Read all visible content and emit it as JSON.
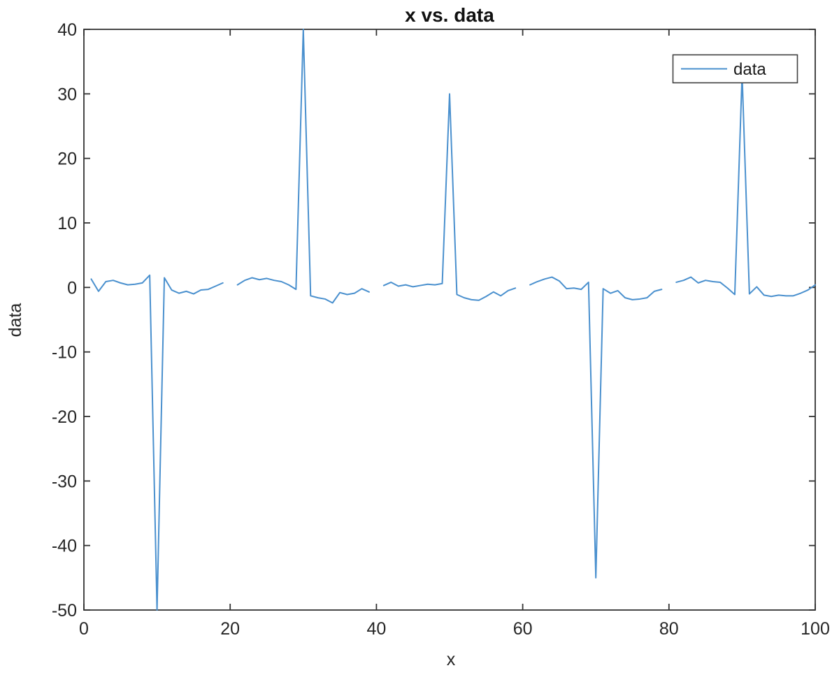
{
  "figure": {
    "title": "x vs. data",
    "xlabel": "x",
    "ylabel": "data",
    "background_color": "#ffffff"
  },
  "legend": {
    "entries": [
      {
        "label": "data",
        "line_color": "#4a90ce"
      }
    ],
    "position": "top-right",
    "border_color": "#404040"
  },
  "colors": {
    "line": "#4a90ce",
    "axis": "#333333",
    "tick_text": "#262626",
    "title_text": "#111111"
  },
  "chart_data": {
    "type": "line",
    "title": "x vs. data",
    "xlabel": "x",
    "ylabel": "data",
    "xlim": [
      0,
      100
    ],
    "ylim": [
      -50,
      40
    ],
    "xticks": [
      0,
      20,
      40,
      60,
      80,
      100
    ],
    "yticks": [
      -50,
      -40,
      -30,
      -20,
      -10,
      0,
      10,
      20,
      30,
      40
    ],
    "grid": false,
    "legend_position": "top-right",
    "series": [
      {
        "name": "data",
        "color": "#4a90ce",
        "x": [
          1,
          2,
          3,
          4,
          5,
          6,
          7,
          8,
          9,
          10,
          11,
          12,
          13,
          14,
          15,
          16,
          17,
          18,
          19,
          20,
          21,
          22,
          23,
          24,
          25,
          26,
          27,
          28,
          29,
          30,
          31,
          32,
          33,
          34,
          35,
          36,
          37,
          38,
          39,
          40,
          41,
          42,
          43,
          44,
          45,
          46,
          47,
          48,
          49,
          50,
          51,
          52,
          53,
          54,
          55,
          56,
          57,
          58,
          59,
          60,
          61,
          62,
          63,
          64,
          65,
          66,
          67,
          68,
          69,
          70,
          71,
          72,
          73,
          74,
          75,
          76,
          77,
          78,
          79,
          80,
          81,
          82,
          83,
          84,
          85,
          86,
          87,
          88,
          89,
          90,
          91,
          92,
          93,
          94,
          95,
          96,
          97,
          98,
          99,
          100
        ],
        "y": [
          1.3,
          -0.6,
          0.9,
          1.1,
          0.7,
          0.4,
          0.5,
          0.7,
          1.9,
          -50,
          1.5,
          -0.4,
          -0.9,
          -0.6,
          -1.0,
          -0.4,
          -0.3,
          0.2,
          0.7,
          null,
          0.4,
          1.1,
          1.5,
          1.2,
          1.4,
          1.1,
          0.9,
          0.4,
          -0.3,
          40,
          -1.3,
          -1.6,
          -1.8,
          -2.4,
          -0.8,
          -1.1,
          -0.9,
          -0.2,
          -0.7,
          null,
          0.3,
          0.8,
          0.2,
          0.4,
          0.1,
          0.3,
          0.5,
          0.4,
          0.6,
          30,
          -1.1,
          -1.6,
          -1.9,
          -2.0,
          -1.4,
          -0.7,
          -1.3,
          -0.5,
          -0.1,
          null,
          0.4,
          0.9,
          1.3,
          1.6,
          1.0,
          -0.2,
          -0.1,
          -0.3,
          0.8,
          -45,
          -0.2,
          -0.9,
          -0.5,
          -1.6,
          -1.9,
          -1.8,
          -1.6,
          -0.6,
          -0.3,
          null,
          0.8,
          1.1,
          1.6,
          0.7,
          1.1,
          0.9,
          0.8,
          -0.1,
          -1.1,
          33,
          -1.0,
          0.1,
          -1.2,
          -1.4,
          -1.2,
          -1.3,
          -1.3,
          -0.9,
          -0.4,
          0.4
        ]
      }
    ]
  }
}
